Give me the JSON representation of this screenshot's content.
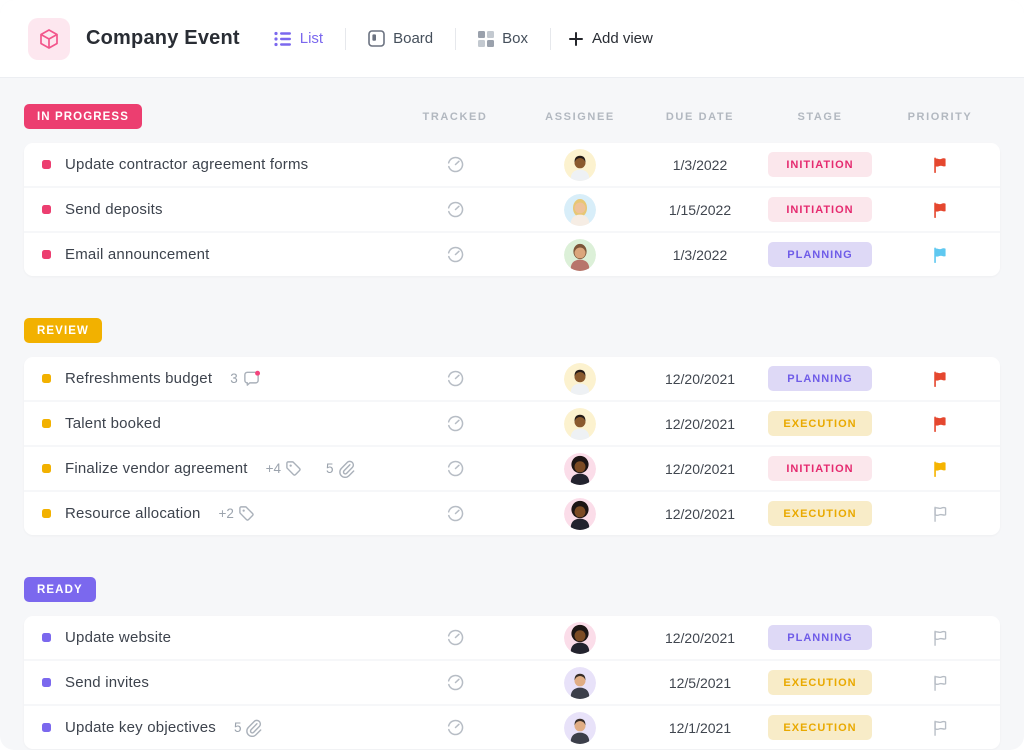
{
  "header": {
    "title": "Company Event",
    "views": [
      {
        "label": "List",
        "active": true
      },
      {
        "label": "Board",
        "active": false
      },
      {
        "label": "Box",
        "active": false
      }
    ],
    "add_view_label": "Add view"
  },
  "columns": [
    "TRACKED",
    "ASSIGNEE",
    "DUE DATE",
    "STAGE",
    "PRIORITY"
  ],
  "stage_styles": {
    "INITIATION": {
      "bg": "#fbe7ec",
      "color": "#e52a6f"
    },
    "PLANNING": {
      "bg": "#ded9f6",
      "color": "#6f5ce8"
    },
    "EXECUTION": {
      "bg": "#f8ecc8",
      "color": "#e9a900"
    }
  },
  "priority_colors": {
    "red": "#e5472f",
    "blue": "#5fc8f0",
    "yellow": "#f5b400",
    "none": "#b7bdc5"
  },
  "avatars": {
    "man-dark": {
      "bg": "#fcf2cf",
      "skin": "#8a5a2e",
      "hair": "#241a16",
      "shirt": "#eef1f4",
      "style": "short"
    },
    "woman-blonde": {
      "bg": "#d8eef9",
      "skin": "#eec29a",
      "hair": "#e7c775",
      "shirt": "#f6ede4",
      "style": "long"
    },
    "woman-bob": {
      "bg": "#dcf0d8",
      "skin": "#dba67c",
      "hair": "#7d5639",
      "shirt": "#b8756b",
      "style": "bob"
    },
    "man-afro": {
      "bg": "#fbdde9",
      "skin": "#7c4b24",
      "hair": "#1c1514",
      "shirt": "#23232e",
      "style": "afro"
    },
    "man-light": {
      "bg": "#e8e2f9",
      "skin": "#e0ad84",
      "hair": "#372c26",
      "shirt": "#3c3f4a",
      "style": "short"
    }
  },
  "sections": [
    {
      "label": "IN PROGRESS",
      "color": "#ec3e70",
      "tasks": [
        {
          "name": "Update contractor agreement forms",
          "meta": [],
          "assignee": "man-dark",
          "due": "1/3/2022",
          "stage": "INITIATION",
          "priority": "red"
        },
        {
          "name": "Send deposits",
          "meta": [],
          "assignee": "woman-blonde",
          "due": "1/15/2022",
          "stage": "INITIATION",
          "priority": "red"
        },
        {
          "name": "Email announcement",
          "meta": [],
          "assignee": "woman-bob",
          "due": "1/3/2022",
          "stage": "PLANNING",
          "priority": "blue"
        }
      ]
    },
    {
      "label": "REVIEW",
      "color": "#f2b100",
      "tasks": [
        {
          "name": "Refreshments budget",
          "meta": [
            {
              "type": "comments",
              "value": "3"
            }
          ],
          "assignee": "man-dark",
          "due": "12/20/2021",
          "stage": "PLANNING",
          "priority": "red"
        },
        {
          "name": "Talent booked",
          "meta": [],
          "assignee": "man-dark",
          "due": "12/20/2021",
          "stage": "EXECUTION",
          "priority": "red"
        },
        {
          "name": "Finalize vendor agreement",
          "meta": [
            {
              "type": "tags",
              "value": "+4"
            },
            {
              "type": "attachments",
              "value": "5"
            }
          ],
          "assignee": "man-afro",
          "due": "12/20/2021",
          "stage": "INITIATION",
          "priority": "yellow"
        },
        {
          "name": "Resource allocation",
          "meta": [
            {
              "type": "tags",
              "value": "+2"
            }
          ],
          "assignee": "man-afro",
          "due": "12/20/2021",
          "stage": "EXECUTION",
          "priority": "none"
        }
      ]
    },
    {
      "label": "READY",
      "color": "#7b68ee",
      "tasks": [
        {
          "name": "Update website",
          "meta": [],
          "assignee": "man-afro",
          "due": "12/20/2021",
          "stage": "PLANNING",
          "priority": "none"
        },
        {
          "name": "Send invites",
          "meta": [],
          "assignee": "man-light",
          "due": "12/5/2021",
          "stage": "EXECUTION",
          "priority": "none"
        },
        {
          "name": "Update key objectives",
          "meta": [
            {
              "type": "attachments",
              "value": "5"
            }
          ],
          "assignee": "man-light",
          "due": "12/1/2021",
          "stage": "EXECUTION",
          "priority": "none"
        }
      ]
    }
  ]
}
